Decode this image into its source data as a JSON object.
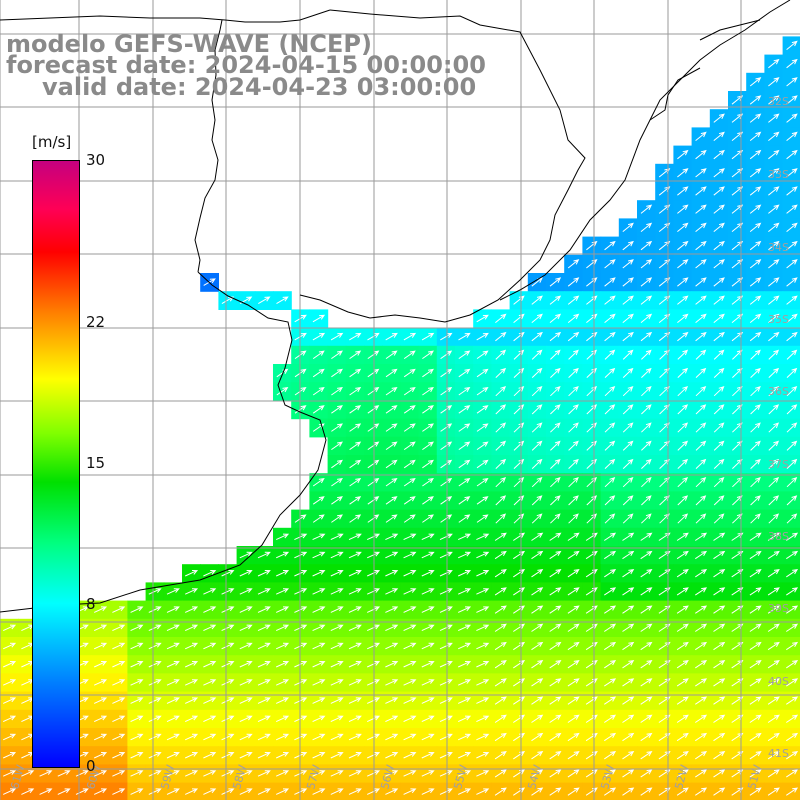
{
  "title": {
    "line1": "modelo GEFS-WAVE (NCEP)",
    "line2": "forecast date: 2024-04-15 00:00:00",
    "line3": "valid date: 2024-04-23 03:00:00"
  },
  "colorbar": {
    "unit": "[m/s]",
    "min": 0,
    "max": 30,
    "ticks": [
      {
        "label": "30",
        "value": 30
      },
      {
        "label": "22",
        "value": 22
      },
      {
        "label": "15",
        "value": 15
      },
      {
        "label": "8",
        "value": 8
      },
      {
        "label": "0",
        "value": 0
      }
    ]
  },
  "axes": {
    "longitude_labels": [
      "61W",
      "60W",
      "59W",
      "58W",
      "57W",
      "56W",
      "55W",
      "54W",
      "53W",
      "52W",
      "51W"
    ],
    "latitude_labels": [
      "32S",
      "33S",
      "34S",
      "35S",
      "36S",
      "37S",
      "38S",
      "39S",
      "40S",
      "41S"
    ]
  },
  "colors": {
    "land": "#ffffff",
    "gridline": "#9a9a9a",
    "coastline": "#000000",
    "arrows": "#ffffff",
    "title_text": "#8a8a8a"
  }
}
